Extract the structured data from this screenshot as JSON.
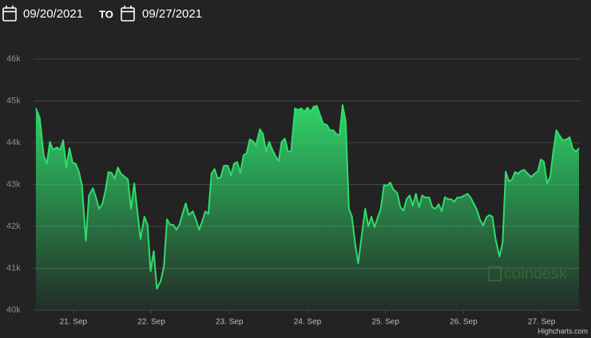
{
  "header": {
    "from": "09/20/2021",
    "separator": "TO",
    "to": "09/27/2021"
  },
  "chart_data": {
    "type": "area",
    "color": "#2fdc6c",
    "grid": true,
    "credits": "Highcharts.com",
    "watermark": "coindesk",
    "xlim": [
      20.49,
      27.5
    ],
    "ylim": [
      40000,
      46000
    ],
    "xticks": [
      {
        "value": 21,
        "label": "21. Sep"
      },
      {
        "value": 22,
        "label": "22. Sep"
      },
      {
        "value": 23,
        "label": "23. Sep"
      },
      {
        "value": 24,
        "label": "24. Sep"
      },
      {
        "value": 25,
        "label": "25. Sep"
      },
      {
        "value": 26,
        "label": "26. Sep"
      },
      {
        "value": 27,
        "label": "27. Sep"
      }
    ],
    "yticks": [
      {
        "value": 40000,
        "label": "40k"
      },
      {
        "value": 41000,
        "label": "41k"
      },
      {
        "value": 42000,
        "label": "42k"
      },
      {
        "value": 43000,
        "label": "43k"
      },
      {
        "value": 44000,
        "label": "44k"
      },
      {
        "value": 45000,
        "label": "45k"
      },
      {
        "value": 46000,
        "label": "46k"
      }
    ],
    "x": [
      20.52,
      20.57,
      20.62,
      20.66,
      20.7,
      20.74,
      20.79,
      20.83,
      20.87,
      20.91,
      20.95,
      20.99,
      21.03,
      21.07,
      21.11,
      21.16,
      21.2,
      21.25,
      21.29,
      21.33,
      21.37,
      21.41,
      21.45,
      21.49,
      21.53,
      21.57,
      21.61,
      21.66,
      21.7,
      21.74,
      21.78,
      21.82,
      21.86,
      21.91,
      21.95,
      21.99,
      22.03,
      22.07,
      22.12,
      22.16,
      22.2,
      22.24,
      22.28,
      22.32,
      22.36,
      22.4,
      22.44,
      22.48,
      22.53,
      22.57,
      22.61,
      22.65,
      22.69,
      22.73,
      22.77,
      22.81,
      22.85,
      22.89,
      22.93,
      22.98,
      23.02,
      23.06,
      23.1,
      23.14,
      23.18,
      23.22,
      23.26,
      23.3,
      23.34,
      23.39,
      23.43,
      23.47,
      23.51,
      23.55,
      23.59,
      23.63,
      23.67,
      23.71,
      23.75,
      23.79,
      23.84,
      23.88,
      23.92,
      23.96,
      24.0,
      24.04,
      24.08,
      24.12,
      24.16,
      24.2,
      24.25,
      24.29,
      24.33,
      24.37,
      24.41,
      24.45,
      24.49,
      24.53,
      24.57,
      24.61,
      24.65,
      24.7,
      24.74,
      24.78,
      24.82,
      24.86,
      24.9,
      24.94,
      24.98,
      25.02,
      25.06,
      25.1,
      25.15,
      25.19,
      25.23,
      25.27,
      25.31,
      25.35,
      25.39,
      25.43,
      25.47,
      25.51,
      25.56,
      25.6,
      25.64,
      25.68,
      25.72,
      25.76,
      25.8,
      25.84,
      25.88,
      25.92,
      25.96,
      26.01,
      26.05,
      26.09,
      26.13,
      26.17,
      26.21,
      26.25,
      26.29,
      26.33,
      26.37,
      26.41,
      26.46,
      26.5,
      26.54,
      26.58,
      26.62,
      26.66,
      26.7,
      26.74,
      26.78,
      26.82,
      26.87,
      26.91,
      26.95,
      26.99,
      27.03,
      27.07,
      27.11,
      27.15,
      27.19,
      27.23,
      27.27,
      27.32,
      27.36,
      27.4,
      27.44,
      27.48
    ],
    "values": [
      44820,
      44590,
      43700,
      43500,
      44020,
      43830,
      43890,
      43830,
      44060,
      43410,
      43870,
      43520,
      43500,
      43310,
      42990,
      41660,
      42740,
      42910,
      42690,
      42420,
      42530,
      42840,
      43300,
      43280,
      43140,
      43410,
      43260,
      43180,
      43120,
      42420,
      43030,
      42360,
      41700,
      42230,
      42040,
      40930,
      41410,
      40510,
      40700,
      41030,
      42170,
      42040,
      42040,
      41920,
      42040,
      42300,
      42550,
      42270,
      42360,
      42170,
      41920,
      42110,
      42360,
      42300,
      43260,
      43370,
      43140,
      43180,
      43450,
      43450,
      43220,
      43500,
      43540,
      43280,
      43700,
      43750,
      44080,
      44040,
      43940,
      44320,
      44210,
      43790,
      44020,
      43830,
      43680,
      43560,
      44020,
      44100,
      43790,
      43790,
      44820,
      44780,
      44820,
      44740,
      44840,
      44740,
      44860,
      44880,
      44670,
      44460,
      44420,
      44290,
      44300,
      44210,
      44170,
      44900,
      44500,
      42420,
      42230,
      41600,
      41120,
      41850,
      42420,
      42000,
      42230,
      41980,
      42210,
      42420,
      42990,
      42970,
      43050,
      42880,
      42800,
      42460,
      42380,
      42650,
      42740,
      42500,
      42780,
      42460,
      42740,
      42690,
      42690,
      42460,
      42420,
      42530,
      42360,
      42700,
      42650,
      42650,
      42590,
      42690,
      42690,
      42740,
      42780,
      42690,
      42550,
      42400,
      42170,
      42020,
      42210,
      42270,
      42230,
      41700,
      41280,
      41600,
      43310,
      43070,
      43120,
      43300,
      43260,
      43330,
      43350,
      43260,
      43180,
      43260,
      43310,
      43600,
      43540,
      43030,
      43180,
      43790,
      44300,
      44170,
      44060,
      44080,
      44130,
      43850,
      43790,
      43870
    ]
  }
}
